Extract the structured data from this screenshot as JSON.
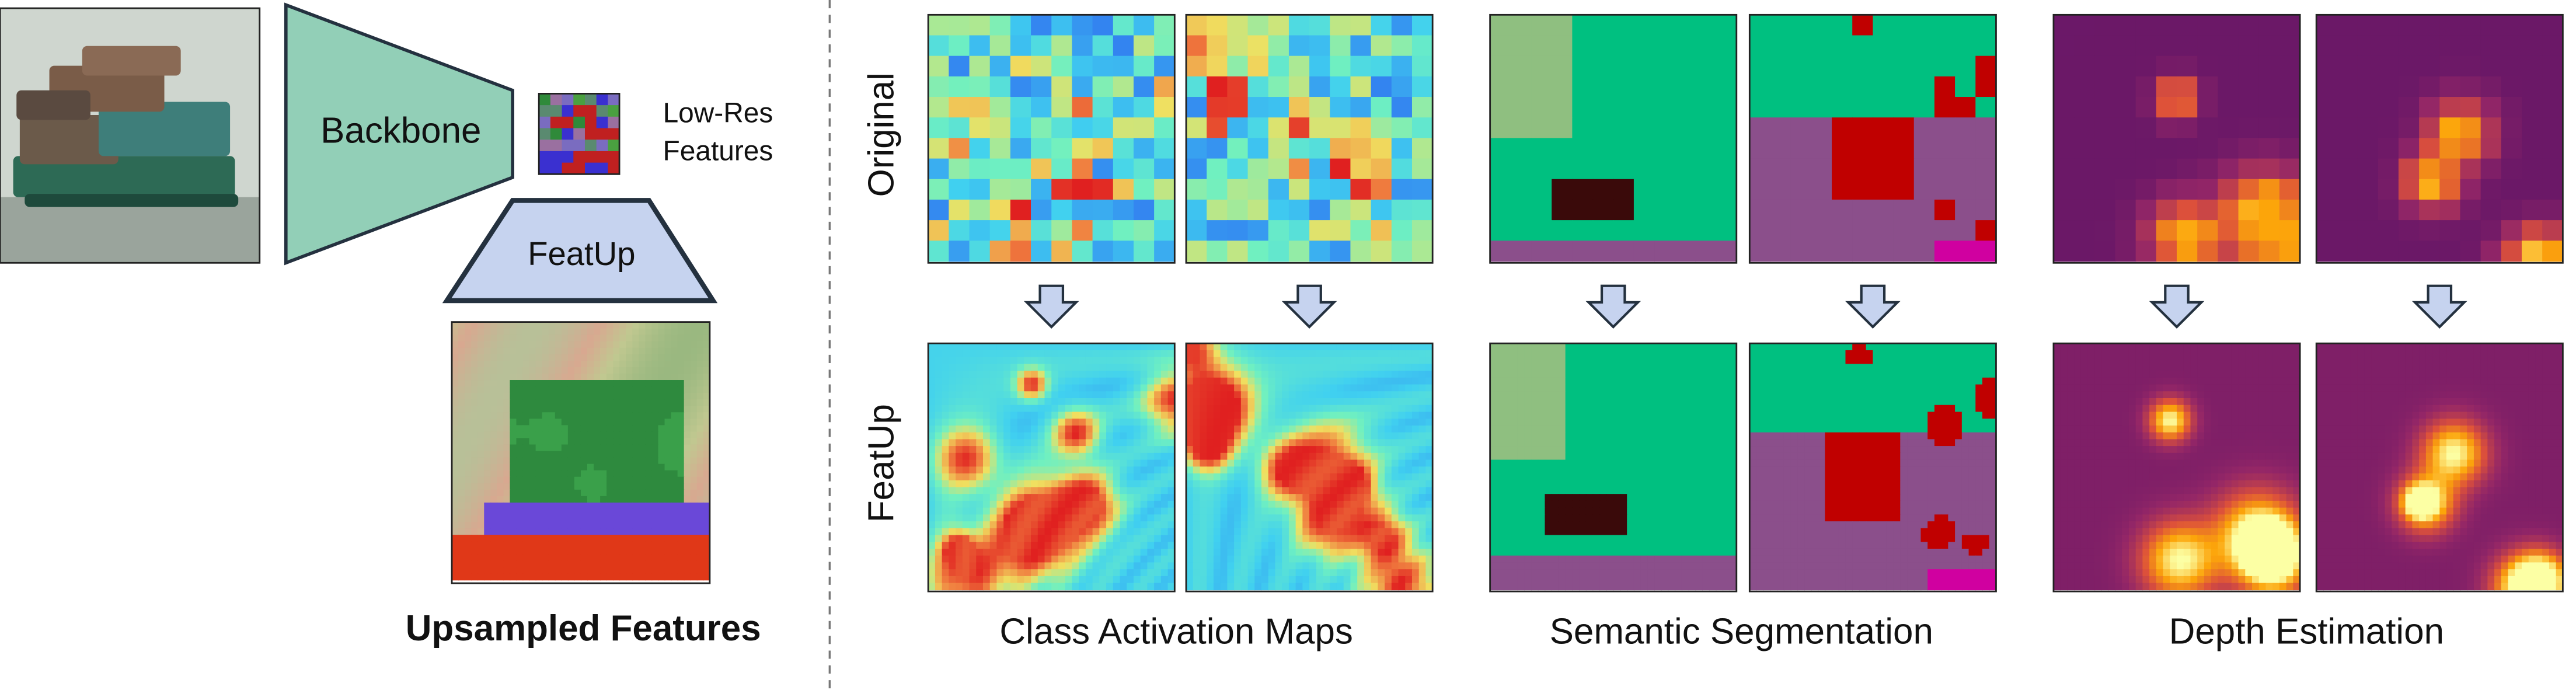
{
  "pipeline": {
    "backbone_label": "Backbone",
    "low_res_label": [
      "Low-Res",
      "Features"
    ],
    "featup_label": "FeatUp",
    "upsampled_label": "Upsampled Features"
  },
  "rows": [
    "Original",
    "FeatUp"
  ],
  "tasks": [
    "Class Activation Maps",
    "Semantic Segmentation",
    "Depth Estimation"
  ]
}
